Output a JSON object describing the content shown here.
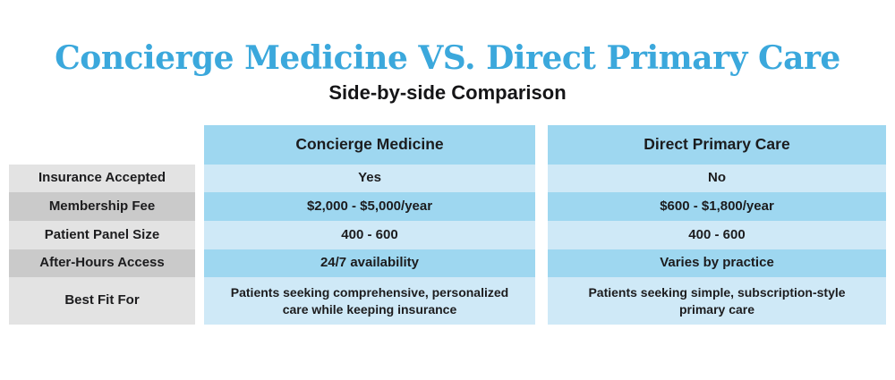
{
  "title": "Concierge Medicine VS. Direct Primary Care",
  "subtitle": "Side-by-side Comparison",
  "colors": {
    "title_blue": "#3BA8DC",
    "header_blue": "#9ED7F0",
    "row_blue_light": "#CFE9F7",
    "row_blue_medium": "#9ED7F0",
    "label_gray_light": "#E3E3E3",
    "label_gray_medium": "#CACACA",
    "text_dark": "#1C1C1E",
    "background": "#FFFFFF"
  },
  "table": {
    "columns": [
      "Concierge Medicine",
      "Direct Primary Care"
    ],
    "rows": [
      {
        "label": "Insurance Accepted",
        "concierge": "Yes",
        "dpc": "No"
      },
      {
        "label": "Membership Fee",
        "concierge": "$2,000 - $5,000/year",
        "dpc": "$600 - $1,800/year"
      },
      {
        "label": "Patient Panel Size",
        "concierge": "400 - 600",
        "dpc": "400 - 600"
      },
      {
        "label": "After-Hours Access",
        "concierge": "24/7 availability",
        "dpc": "Varies by practice"
      },
      {
        "label": "Best Fit For",
        "concierge": "Patients seeking comprehensive, personalized care while keeping insurance",
        "dpc": "Patients seeking simple, subscription-style primary care"
      }
    ]
  },
  "chart_data": {
    "type": "table",
    "title": "Concierge Medicine VS. Direct Primary Care",
    "subtitle": "Side-by-side Comparison",
    "columns": [
      "",
      "Concierge Medicine",
      "Direct Primary Care"
    ],
    "rows": [
      [
        "Insurance Accepted",
        "Yes",
        "No"
      ],
      [
        "Membership Fee",
        "$2,000 - $5,000/year",
        "$600 - $1,800/year"
      ],
      [
        "Patient Panel Size",
        "400 - 600",
        "400 - 600"
      ],
      [
        "After-Hours Access",
        "24/7 availability",
        "Varies by practice"
      ],
      [
        "Best Fit For",
        "Patients seeking comprehensive, personalized care while keeping insurance",
        "Patients seeking simple, subscription-style primary care"
      ]
    ],
    "layout": {
      "legend": false,
      "grid": false,
      "row_striping": "alternating light/medium blue and gray"
    }
  }
}
